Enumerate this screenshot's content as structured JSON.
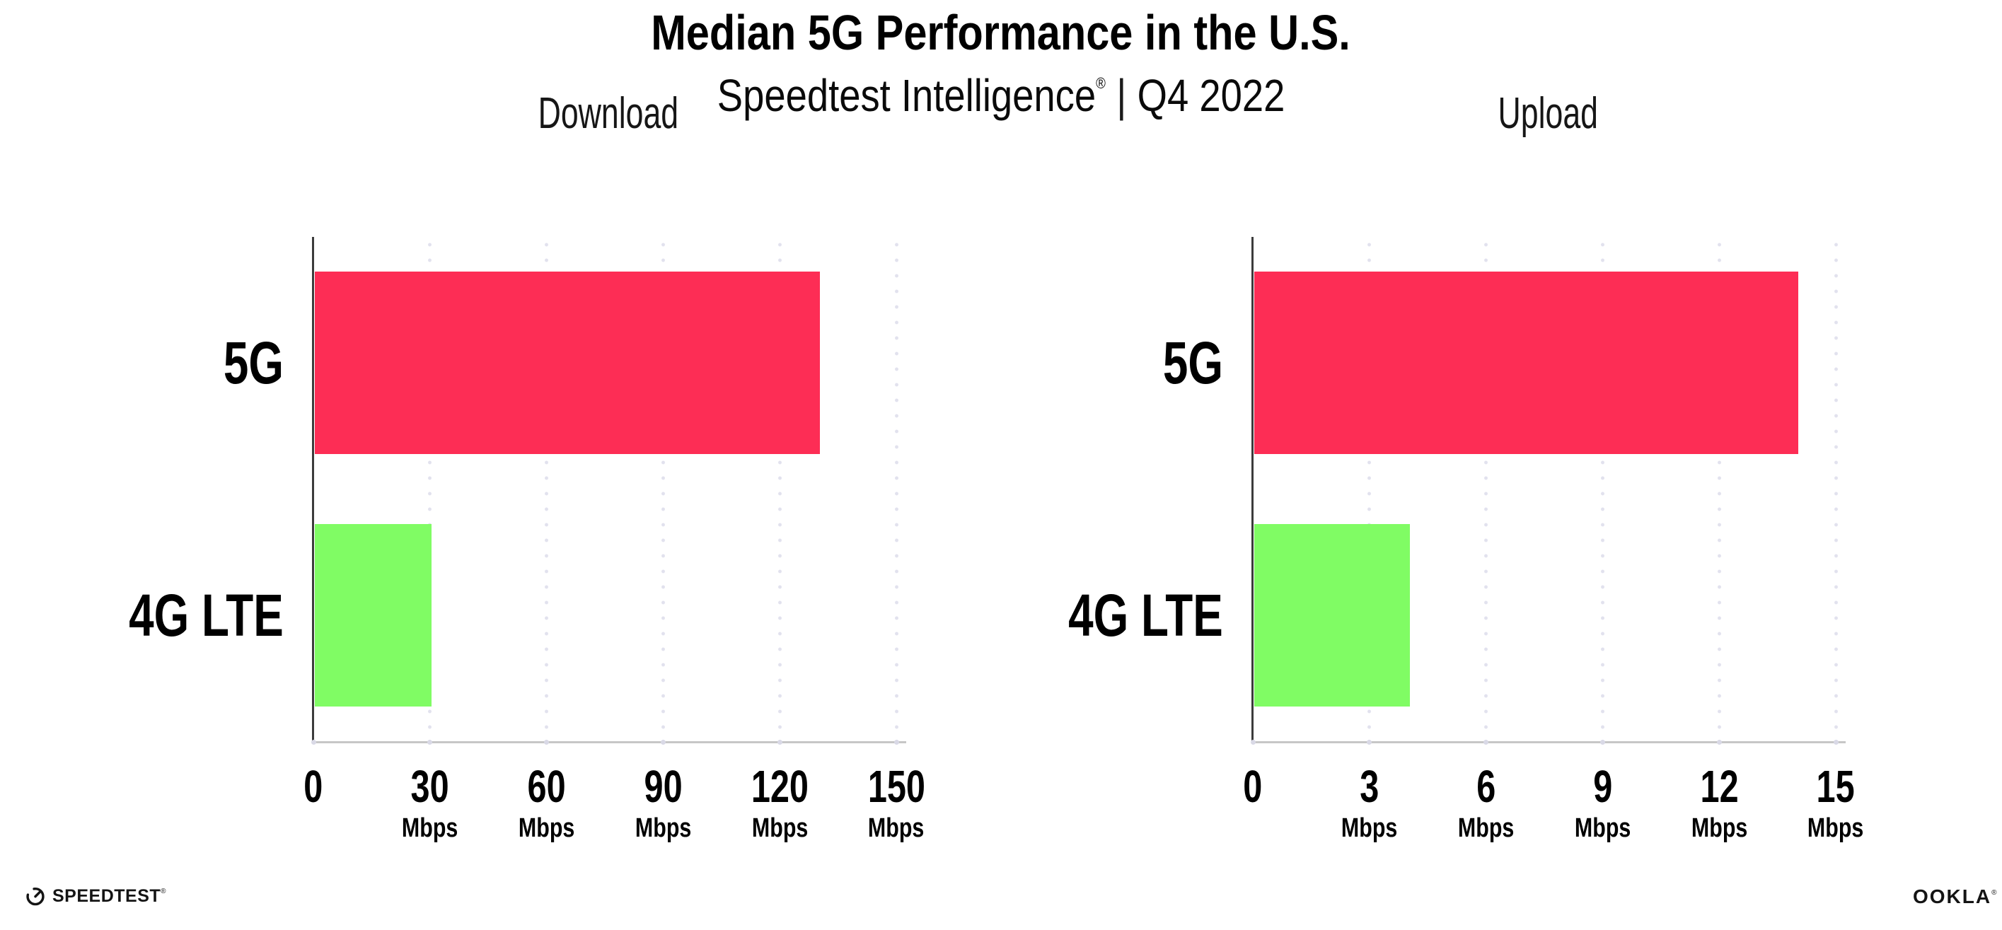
{
  "page": {
    "background": "#ffffff"
  },
  "header": {
    "title": "Median 5G Performance in the U.S.",
    "subtitle_brand": "Speedtest Intelligence",
    "subtitle_reg": "®",
    "subtitle_separator": "|",
    "subtitle_period": "Q4 2022"
  },
  "chart_data": [
    {
      "type": "bar",
      "orientation": "horizontal",
      "title": "Download",
      "unit": "Mbps",
      "categories": [
        "5G",
        "4G LTE"
      ],
      "values": [
        130,
        30
      ],
      "bar_colors": [
        "#fd2d55",
        "#80fc64"
      ],
      "xlim": [
        0,
        150
      ],
      "xticks": [
        0,
        30,
        60,
        90,
        120,
        150
      ],
      "grid": "vertical-dotted",
      "legend": "none"
    },
    {
      "type": "bar",
      "orientation": "horizontal",
      "title": "Upload",
      "unit": "Mbps",
      "categories": [
        "5G",
        "4G LTE"
      ],
      "values": [
        14,
        4
      ],
      "bar_colors": [
        "#fd2d55",
        "#80fc64"
      ],
      "xlim": [
        0,
        15
      ],
      "xticks": [
        0,
        3,
        6,
        9,
        12,
        15
      ],
      "grid": "vertical-dotted",
      "legend": "none"
    }
  ],
  "footer": {
    "speedtest_label": "SPEEDTEST",
    "speedtest_reg": "®",
    "ookla_label": "OOKLA",
    "ookla_reg": "®"
  },
  "colors": {
    "bar_5g": "#fd2d55",
    "bar_4g_lte": "#80fc64",
    "gridline": "#e2e2ee",
    "axis_spine": "#3c3c3c",
    "axis_line": "#c7c7c7",
    "text": "#000000"
  }
}
